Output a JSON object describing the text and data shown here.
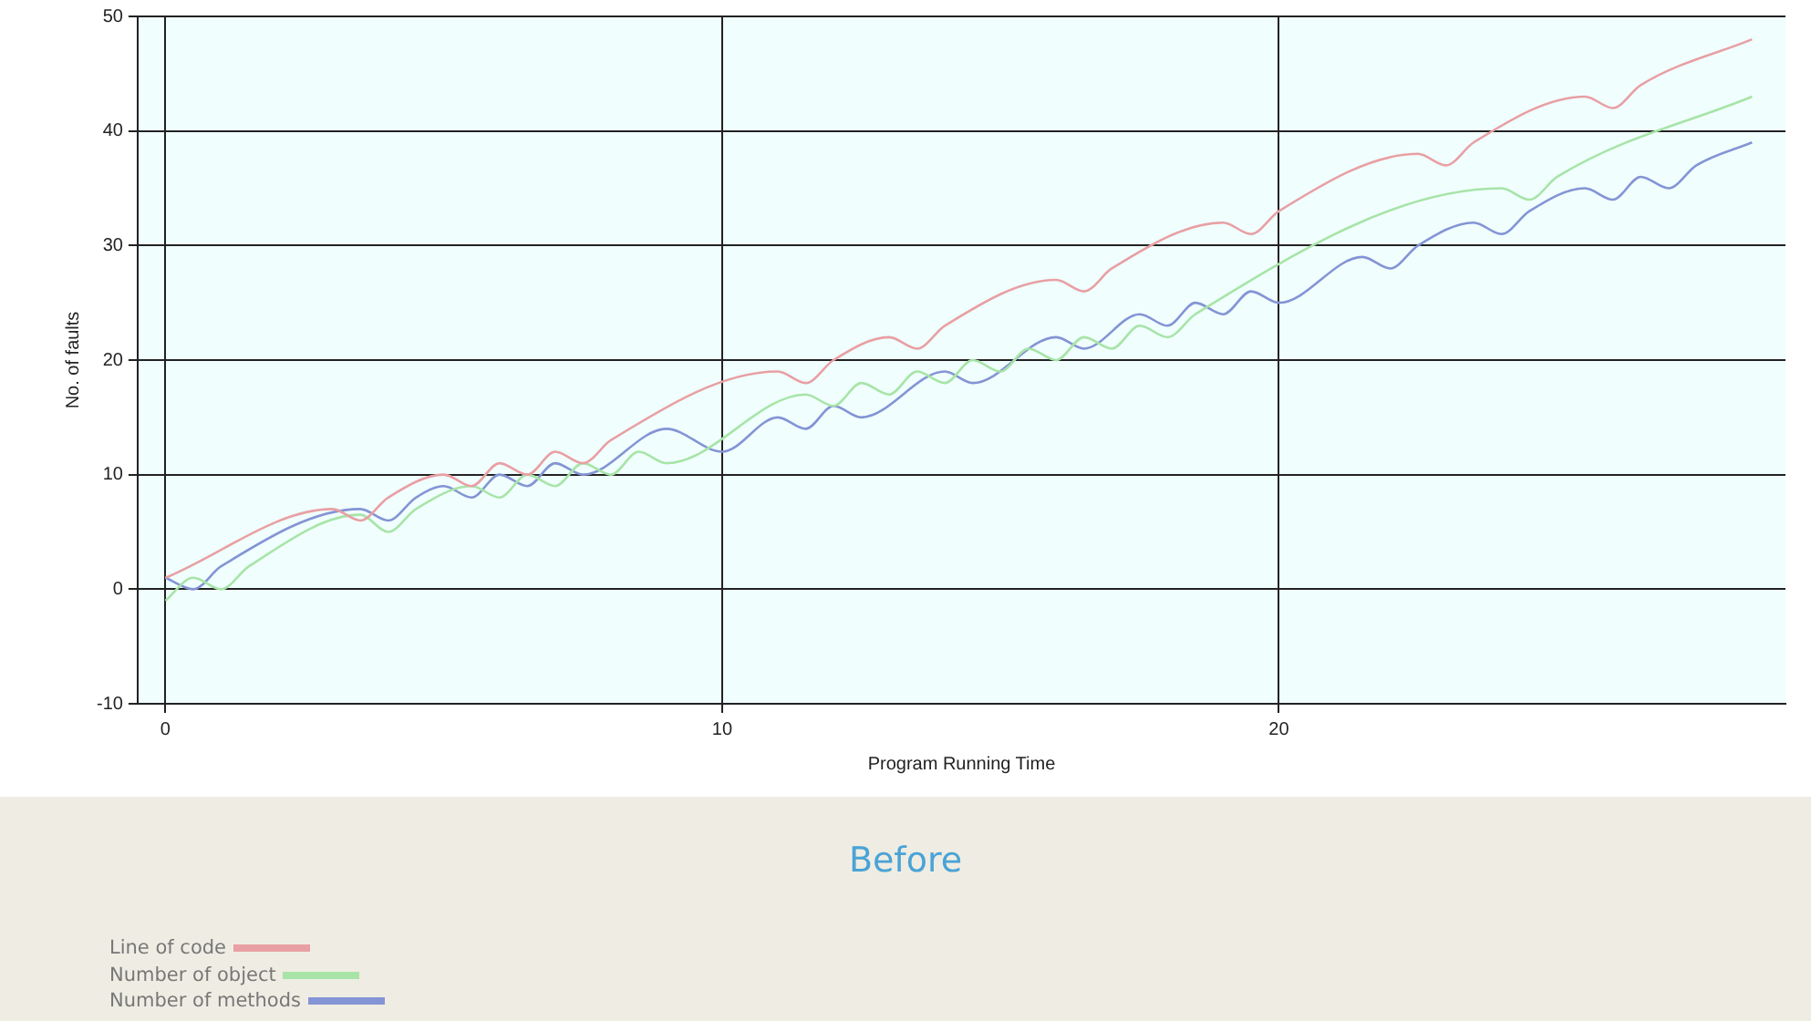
{
  "chart_data": {
    "type": "line",
    "title": "Before",
    "xlabel": "Program Running Time",
    "ylabel": "No. of faults",
    "xlim": [
      -0.5,
      29.1
    ],
    "xticks": [
      0,
      10,
      20
    ],
    "ylim": [
      -10,
      50
    ],
    "yticks": [
      -10,
      0,
      10,
      20,
      30,
      40,
      50
    ],
    "grid": true,
    "legend": "bottom left",
    "marker": "none",
    "line_style": "solid",
    "series": [
      {
        "name": "Line of code",
        "color": "#e8a0a4",
        "x": [
          0,
          3,
          3.5,
          4,
          5,
          5.5,
          6,
          6.5,
          7,
          7.5,
          8,
          11,
          11.5,
          12,
          13,
          13.5,
          14,
          16,
          16.5,
          17,
          19,
          19.5,
          20,
          22.5,
          23,
          23.5,
          25.5,
          26,
          26.5,
          28.5
        ],
        "values": [
          1,
          7,
          6,
          8,
          10,
          9,
          11,
          10,
          12,
          11,
          13,
          19,
          18,
          20,
          22,
          21,
          23,
          27,
          26,
          28,
          32,
          31,
          33,
          38,
          37,
          39,
          43,
          42,
          44,
          48
        ]
      },
      {
        "name": "Number of object",
        "color": "#a8e4a8",
        "x": [
          0,
          0.5,
          1,
          1.5,
          3.5,
          4,
          4.5,
          5.5,
          6,
          6.5,
          7,
          7.5,
          8,
          8.5,
          9,
          11.5,
          12,
          12.5,
          13,
          13.5,
          14,
          14.5,
          15,
          15.5,
          16,
          16.5,
          17,
          17.5,
          18,
          18.5,
          24,
          24.5,
          25,
          28.5
        ],
        "values": [
          -1,
          1,
          0,
          2,
          6.5,
          5,
          7,
          9,
          8,
          10,
          9,
          11,
          10,
          12,
          11,
          17,
          16,
          18,
          17,
          19,
          18,
          20,
          19,
          21,
          20,
          22,
          21,
          23,
          22,
          24,
          35,
          34,
          36,
          43
        ]
      },
      {
        "name": "Number of methods",
        "color": "#8494d4",
        "x": [
          0,
          0.5,
          1,
          3.5,
          4,
          4.5,
          5,
          5.5,
          6,
          6.5,
          7,
          7.5,
          9,
          10,
          11,
          11.5,
          12,
          12.5,
          14,
          14.5,
          16,
          16.5,
          17.5,
          18,
          18.5,
          19,
          19.5,
          20,
          21.5,
          22,
          22.5,
          23.5,
          24,
          24.5,
          25.5,
          26,
          26.5,
          27,
          27.5,
          28.5
        ],
        "values": [
          1,
          0,
          2,
          7,
          6,
          8,
          9,
          8,
          10,
          9,
          11,
          10,
          14,
          12,
          15,
          14,
          16,
          15,
          19,
          18,
          22,
          21,
          24,
          23,
          25,
          24,
          26,
          25,
          29,
          28,
          30,
          32,
          31,
          33,
          35,
          34,
          36,
          35,
          37,
          39
        ]
      }
    ]
  }
}
